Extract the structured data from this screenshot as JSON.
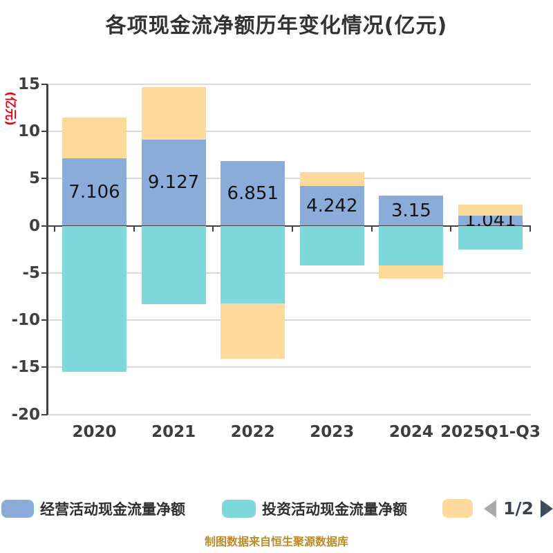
{
  "title": "各项现金流净额历年变化情况(亿元)",
  "y_axis": {
    "unit_label": "(亿元)",
    "unit_label_color": "#e60012",
    "ticks": [
      "15",
      "10",
      "5",
      "0",
      "-5",
      "-10",
      "-15",
      "-20"
    ]
  },
  "x_axis": {
    "categories": [
      "2020",
      "2021",
      "2022",
      "2023",
      "2024",
      "2025Q1-Q3"
    ]
  },
  "chart_data": {
    "type": "bar",
    "stacked": true,
    "categories": [
      "2020",
      "2021",
      "2022",
      "2023",
      "2024",
      "2025Q1-Q3"
    ],
    "series": [
      {
        "key": "operating",
        "name": "经营活动现金流量净额",
        "color": "#8bacd9",
        "values": [
          7.106,
          9.127,
          6.851,
          4.242,
          3.15,
          1.041
        ],
        "labels": [
          "7.106",
          "9.127",
          "6.851",
          "4.242",
          "3.15",
          "1.041"
        ]
      },
      {
        "key": "investing",
        "name": "投资活动现金流量净额",
        "color": "#7fd8dc",
        "values": [
          -15.5,
          -8.3,
          -8.2,
          -4.2,
          -4.2,
          -2.5
        ]
      },
      {
        "key": "financing",
        "name": "",
        "color": "#fdd99c",
        "values": [
          4.35,
          5.57,
          -5.9,
          1.43,
          -1.4,
          1.19
        ]
      }
    ],
    "title": "各项现金流净额历年变化情况(亿元)",
    "xlabel": "",
    "ylabel": "(亿元)",
    "ylim": [
      -20,
      15
    ],
    "grid": true,
    "legend_position": "bottom"
  },
  "legend": {
    "items": [
      {
        "label": "经营活动现金流量净额",
        "color": "#8bacd9"
      },
      {
        "label": "投资活动现金流量净额",
        "color": "#7fd8dc"
      },
      {
        "label": "",
        "color": "#fdd99c"
      }
    ],
    "pagination": {
      "current": "1/2"
    }
  },
  "caption": "制图数据来自恒生聚源数据库"
}
